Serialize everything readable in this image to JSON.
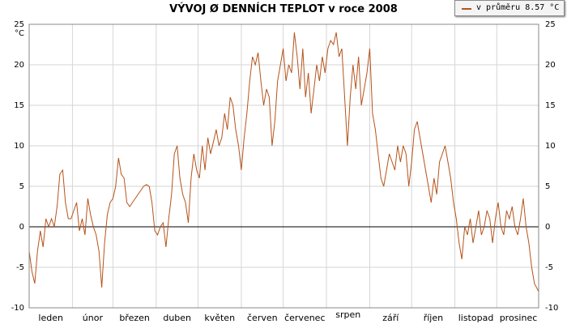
{
  "chart_data": {
    "type": "line",
    "title": "VÝVOJ Ø DENNÍCH TEPLOT v roce 2008",
    "ylabel_unit": "°C",
    "ylim": [
      -10,
      25
    ],
    "yticks": [
      25,
      20,
      15,
      10,
      5,
      0,
      -5,
      -10
    ],
    "months": [
      "leden",
      "únor",
      "březen",
      "duben",
      "květen",
      "červen",
      "červenec",
      "srpen",
      "září",
      "říjen",
      "listopad",
      "prosinec"
    ],
    "grid": true,
    "legend_position": "top-right",
    "series": [
      {
        "name": "v průměru 8.57 °C",
        "color": "#b5531b",
        "x_unit": "day of year 2008",
        "points": [
          [
            1,
            -3
          ],
          [
            3,
            -5.5
          ],
          [
            5,
            -7
          ],
          [
            7,
            -3
          ],
          [
            9,
            -0.5
          ],
          [
            11,
            -2.5
          ],
          [
            13,
            1
          ],
          [
            15,
            0
          ],
          [
            17,
            1
          ],
          [
            19,
            0
          ],
          [
            21,
            2.5
          ],
          [
            23,
            6.5
          ],
          [
            25,
            7
          ],
          [
            27,
            3
          ],
          [
            29,
            1
          ],
          [
            31,
            1
          ],
          [
            33,
            2
          ],
          [
            35,
            3
          ],
          [
            37,
            -0.5
          ],
          [
            39,
            1
          ],
          [
            41,
            -1
          ],
          [
            43,
            3.5
          ],
          [
            45,
            1.5
          ],
          [
            47,
            0
          ],
          [
            49,
            -1
          ],
          [
            51,
            -3
          ],
          [
            53,
            -7.5
          ],
          [
            55,
            -2
          ],
          [
            57,
            1.5
          ],
          [
            59,
            3
          ],
          [
            61,
            3.5
          ],
          [
            63,
            5
          ],
          [
            65,
            8.5
          ],
          [
            67,
            6.5
          ],
          [
            69,
            6
          ],
          [
            71,
            3
          ],
          [
            73,
            2.5
          ],
          [
            75,
            3
          ],
          [
            77,
            3.5
          ],
          [
            79,
            4
          ],
          [
            81,
            4.5
          ],
          [
            83,
            5
          ],
          [
            85,
            5.2
          ],
          [
            87,
            5
          ],
          [
            89,
            3
          ],
          [
            91,
            -0.5
          ],
          [
            93,
            -1
          ],
          [
            95,
            0
          ],
          [
            97,
            0.5
          ],
          [
            99,
            -2.5
          ],
          [
            101,
            1
          ],
          [
            103,
            4
          ],
          [
            105,
            9
          ],
          [
            107,
            10
          ],
          [
            109,
            6
          ],
          [
            111,
            4
          ],
          [
            113,
            3
          ],
          [
            115,
            0.5
          ],
          [
            117,
            6
          ],
          [
            119,
            9
          ],
          [
            121,
            7
          ],
          [
            123,
            6
          ],
          [
            125,
            10
          ],
          [
            127,
            7
          ],
          [
            129,
            11
          ],
          [
            131,
            9
          ],
          [
            133,
            10.5
          ],
          [
            135,
            12
          ],
          [
            137,
            10
          ],
          [
            139,
            11
          ],
          [
            141,
            14
          ],
          [
            143,
            12
          ],
          [
            145,
            16
          ],
          [
            147,
            15
          ],
          [
            149,
            12
          ],
          [
            151,
            10
          ],
          [
            153,
            7
          ],
          [
            155,
            11
          ],
          [
            157,
            14
          ],
          [
            159,
            18
          ],
          [
            161,
            21
          ],
          [
            163,
            20
          ],
          [
            165,
            21.5
          ],
          [
            167,
            18
          ],
          [
            169,
            15
          ],
          [
            171,
            17
          ],
          [
            173,
            16
          ],
          [
            175,
            10
          ],
          [
            177,
            13
          ],
          [
            179,
            18
          ],
          [
            181,
            20
          ],
          [
            183,
            22
          ],
          [
            185,
            18
          ],
          [
            187,
            20
          ],
          [
            189,
            19
          ],
          [
            191,
            24
          ],
          [
            193,
            21
          ],
          [
            195,
            17
          ],
          [
            197,
            22
          ],
          [
            199,
            16
          ],
          [
            201,
            19
          ],
          [
            203,
            14
          ],
          [
            205,
            17
          ],
          [
            207,
            20
          ],
          [
            209,
            18
          ],
          [
            211,
            21
          ],
          [
            213,
            19
          ],
          [
            215,
            22
          ],
          [
            217,
            23
          ],
          [
            219,
            22.5
          ],
          [
            221,
            24
          ],
          [
            223,
            21
          ],
          [
            225,
            22
          ],
          [
            227,
            16
          ],
          [
            229,
            10
          ],
          [
            231,
            16
          ],
          [
            233,
            20
          ],
          [
            235,
            17
          ],
          [
            237,
            21
          ],
          [
            239,
            15
          ],
          [
            241,
            17
          ],
          [
            243,
            19
          ],
          [
            245,
            22
          ],
          [
            247,
            14
          ],
          [
            249,
            12
          ],
          [
            251,
            9
          ],
          [
            253,
            6
          ],
          [
            255,
            5
          ],
          [
            257,
            7
          ],
          [
            259,
            9
          ],
          [
            261,
            8
          ],
          [
            263,
            7
          ],
          [
            265,
            10
          ],
          [
            267,
            8
          ],
          [
            269,
            10
          ],
          [
            271,
            9
          ],
          [
            273,
            5
          ],
          [
            275,
            8
          ],
          [
            277,
            12
          ],
          [
            279,
            13
          ],
          [
            281,
            11
          ],
          [
            283,
            9
          ],
          [
            285,
            7
          ],
          [
            287,
            5
          ],
          [
            289,
            3
          ],
          [
            291,
            6
          ],
          [
            293,
            4
          ],
          [
            295,
            8
          ],
          [
            297,
            9
          ],
          [
            299,
            10
          ],
          [
            301,
            8
          ],
          [
            303,
            6
          ],
          [
            305,
            3
          ],
          [
            307,
            1
          ],
          [
            309,
            -2
          ],
          [
            311,
            -4
          ],
          [
            313,
            0
          ],
          [
            315,
            -1
          ],
          [
            317,
            1
          ],
          [
            319,
            -2
          ],
          [
            321,
            0
          ],
          [
            323,
            2
          ],
          [
            325,
            -1
          ],
          [
            327,
            0
          ],
          [
            329,
            2
          ],
          [
            331,
            1
          ],
          [
            333,
            -2
          ],
          [
            335,
            1
          ],
          [
            337,
            3
          ],
          [
            339,
            0
          ],
          [
            341,
            -1
          ],
          [
            343,
            2
          ],
          [
            345,
            1
          ],
          [
            347,
            2.5
          ],
          [
            349,
            0
          ],
          [
            351,
            -1
          ],
          [
            353,
            1
          ],
          [
            355,
            3.5
          ],
          [
            357,
            0
          ],
          [
            359,
            -2
          ],
          [
            361,
            -5
          ],
          [
            363,
            -7
          ],
          [
            366,
            -8
          ]
        ]
      }
    ]
  }
}
